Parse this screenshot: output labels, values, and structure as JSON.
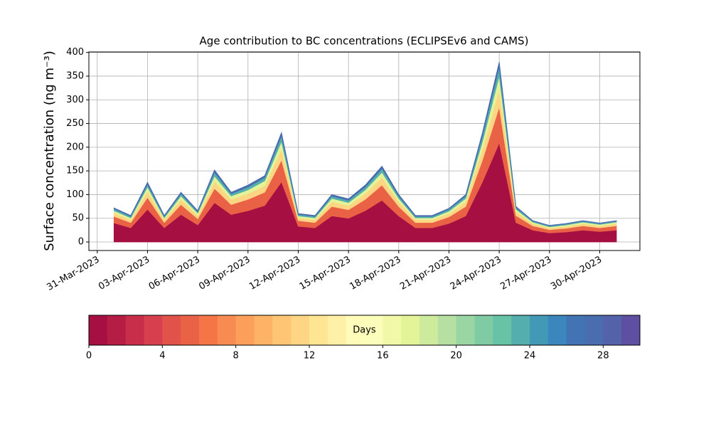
{
  "chart_data": {
    "type": "stackedarea",
    "title": "Age contribution to BC concentrations (ECLIPSEv6 and CAMS)",
    "y_label": "Surface concentration (ng m⁻³)",
    "x": [
      "2023-04-01",
      "2023-04-02",
      "2023-04-03",
      "2023-04-04",
      "2023-04-05",
      "2023-04-06",
      "2023-04-07",
      "2023-04-08",
      "2023-04-09",
      "2023-04-10",
      "2023-04-11",
      "2023-04-12",
      "2023-04-13",
      "2023-04-14",
      "2023-04-15",
      "2023-04-16",
      "2023-04-17",
      "2023-04-18",
      "2023-04-19",
      "2023-04-20",
      "2023-04-21",
      "2023-04-22",
      "2023-04-23",
      "2023-04-24",
      "2023-04-25",
      "2023-04-26",
      "2023-04-27",
      "2023-04-28",
      "2023-04-29",
      "2023-04-30",
      "2023-05-01"
    ],
    "series": [
      {
        "color": "#a50f42",
        "values": [
          40,
          30,
          69,
          30,
          58,
          36,
          83,
          58,
          66,
          77,
          127,
          33,
          30,
          55,
          50,
          66,
          88,
          55,
          30,
          30,
          39,
          55,
          127,
          209,
          41,
          25,
          19,
          21,
          25,
          22,
          25
        ]
      },
      {
        "color": "#ea6246",
        "values": [
          14,
          11,
          25,
          11,
          21,
          13,
          30,
          21,
          24,
          28,
          46,
          12,
          11,
          20,
          18,
          24,
          32,
          20,
          11,
          11,
          14,
          20,
          46,
          76,
          15,
          9,
          7,
          8,
          9,
          8,
          9
        ]
      },
      {
        "color": "#fed683",
        "values": [
          7,
          6,
          13,
          6,
          11,
          7,
          15,
          11,
          12,
          14,
          23,
          6,
          6,
          10,
          9,
          12,
          16,
          10,
          6,
          6,
          7,
          10,
          23,
          38,
          8,
          5,
          4,
          4,
          5,
          4,
          5
        ]
      },
      {
        "color": "#e3f397",
        "values": [
          5,
          4,
          9,
          4,
          7,
          5,
          11,
          7,
          8,
          10,
          16,
          4,
          4,
          7,
          6,
          8,
          11,
          7,
          4,
          4,
          5,
          7,
          16,
          27,
          5,
          3,
          2,
          3,
          3,
          3,
          3
        ]
      },
      {
        "color": "#54aead",
        "values": [
          4,
          3,
          6,
          3,
          5,
          3,
          8,
          5,
          6,
          7,
          12,
          3,
          3,
          5,
          5,
          6,
          8,
          5,
          3,
          3,
          4,
          5,
          12,
          19,
          4,
          2,
          2,
          2,
          2,
          2,
          2
        ]
      },
      {
        "color": "#4a6db0",
        "values": [
          2,
          2,
          4,
          2,
          3,
          2,
          5,
          3,
          4,
          4,
          7,
          2,
          2,
          3,
          3,
          4,
          5,
          3,
          2,
          2,
          2,
          3,
          7,
          11,
          2,
          1,
          1,
          1,
          1,
          1,
          1
        ]
      }
    ],
    "ylim": [
      -18,
      401
    ],
    "yticks": [
      0,
      50,
      100,
      150,
      200,
      250,
      300,
      350,
      400
    ],
    "xticks": [
      {
        "value": "2023-03-31",
        "label": "31-Mar-2023"
      },
      {
        "value": "2023-04-03",
        "label": "03-Apr-2023"
      },
      {
        "value": "2023-04-06",
        "label": "06-Apr-2023"
      },
      {
        "value": "2023-04-09",
        "label": "09-Apr-2023"
      },
      {
        "value": "2023-04-12",
        "label": "12-Apr-2023"
      },
      {
        "value": "2023-04-15",
        "label": "15-Apr-2023"
      },
      {
        "value": "2023-04-18",
        "label": "18-Apr-2023"
      },
      {
        "value": "2023-04-21",
        "label": "21-Apr-2023"
      },
      {
        "value": "2023-04-24",
        "label": "24-Apr-2023"
      },
      {
        "value": "2023-04-27",
        "label": "27-Apr-2023"
      },
      {
        "value": "2023-04-30",
        "label": "30-Apr-2023"
      }
    ],
    "grid": true,
    "colorbar": {
      "label": "Days",
      "lim": [
        0,
        30
      ],
      "ticks": [
        0,
        4,
        8,
        12,
        16,
        20,
        24,
        28
      ],
      "colors": [
        "#a50f42",
        "#b61d45",
        "#c82d4a",
        "#d83f4e",
        "#e1524a",
        "#ea6246",
        "#f57547",
        "#f88b51",
        "#fb9f5a",
        "#fdb365",
        "#fdc574",
        "#fed683",
        "#fee593",
        "#fef0a7",
        "#fffbb9",
        "#fbfdba",
        "#f1f9a9",
        "#e3f397",
        "#cdea9d",
        "#b5e0a2",
        "#9ad5a4",
        "#7fcba4",
        "#68c3a6",
        "#54aead",
        "#4199b6",
        "#3b86bc",
        "#4274b4",
        "#4a6db0",
        "#5462aa",
        "#5e4fa2"
      ]
    }
  }
}
